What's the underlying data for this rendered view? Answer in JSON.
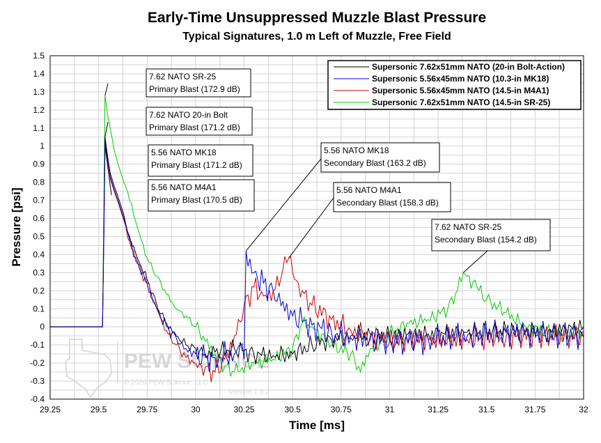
{
  "chart_data": {
    "type": "line",
    "title": "Early-Time Unsuppressed Muzzle Blast Pressure",
    "subtitle": "Typical Signatures, 1.0 m Left of Muzzle, Free Field",
    "xlabel": "Time [ms]",
    "ylabel": "Pressure [psi]",
    "xlim": [
      29.25,
      32
    ],
    "ylim": [
      -0.4,
      1.5
    ],
    "x_ticks": [
      "29.25",
      "29.5",
      "29.75",
      "30",
      "30.25",
      "30.5",
      "30.75",
      "31",
      "31.25",
      "31.5",
      "31.75",
      "32"
    ],
    "y_ticks": [
      "1.5",
      "1.4",
      "1.3",
      "1.2",
      "1.1",
      "1",
      "0.9",
      "0.8",
      "0.7",
      "0.6",
      "0.5",
      "0.4",
      "0.3",
      "0.2",
      "0.1",
      "0",
      "-0.1",
      "-0.2",
      "-0.3",
      "-0.4"
    ],
    "grid": true,
    "legend_position": "top-right",
    "series": [
      {
        "name": "Supersonic 7.62x51mm NATO (20-in Bolt-Action)",
        "color": "#000000",
        "x": [
          29.25,
          29.52,
          29.527,
          29.533,
          29.545,
          29.56,
          29.58,
          29.6,
          29.63,
          29.66,
          29.7,
          29.75,
          29.8,
          29.85,
          29.9,
          29.95,
          30.0,
          30.05,
          30.1,
          30.2,
          30.3,
          30.4,
          30.5,
          30.6,
          30.7,
          30.8,
          30.9,
          31.0,
          31.2,
          31.4,
          31.6,
          31.8,
          32.0
        ],
        "values": [
          0,
          0,
          0.55,
          1.05,
          0.95,
          0.85,
          0.78,
          0.72,
          0.62,
          0.5,
          0.38,
          0.26,
          0.12,
          0.02,
          -0.05,
          -0.1,
          -0.12,
          -0.15,
          -0.14,
          -0.12,
          -0.15,
          -0.16,
          -0.15,
          -0.1,
          -0.07,
          -0.05,
          -0.04,
          -0.05,
          -0.04,
          -0.03,
          -0.02,
          -0.03,
          0.0
        ]
      },
      {
        "name": "Supersonic 5.56x45mm NATO (10.3-in MK18)",
        "color": "#0000cc",
        "x": [
          29.25,
          29.52,
          29.527,
          29.533,
          29.545,
          29.56,
          29.58,
          29.6,
          29.63,
          29.66,
          29.7,
          29.75,
          29.8,
          29.85,
          29.9,
          29.95,
          30.0,
          30.05,
          30.1,
          30.2,
          30.23,
          30.25,
          30.26,
          30.3,
          30.35,
          30.4,
          30.45,
          30.5,
          30.6,
          30.7,
          30.8,
          30.9,
          31.0,
          31.2,
          31.4,
          31.6,
          31.8,
          32.0
        ],
        "values": [
          0,
          0,
          0.5,
          1.03,
          0.95,
          0.83,
          0.76,
          0.7,
          0.6,
          0.48,
          0.36,
          0.24,
          0.1,
          0.0,
          -0.06,
          -0.12,
          -0.15,
          -0.17,
          -0.17,
          -0.15,
          -0.1,
          -0.18,
          0.42,
          0.3,
          0.24,
          0.2,
          0.14,
          0.06,
          0.01,
          -0.03,
          -0.06,
          -0.07,
          -0.08,
          -0.07,
          -0.05,
          -0.03,
          -0.04,
          -0.05
        ]
      },
      {
        "name": "Supersonic 5.56x45mm NATO (14.5-in M4A1)",
        "color": "#cc0000",
        "x": [
          29.25,
          29.52,
          29.527,
          29.533,
          29.545,
          29.56,
          29.58,
          29.6,
          29.63,
          29.66,
          29.7,
          29.75,
          29.8,
          29.85,
          29.9,
          29.95,
          30.0,
          30.05,
          30.1,
          30.15,
          30.2,
          30.25,
          30.3,
          30.35,
          30.4,
          30.45,
          30.48,
          30.5,
          30.55,
          30.6,
          30.7,
          30.8,
          30.9,
          31.0,
          31.2,
          31.4,
          31.6,
          31.8,
          32.0
        ],
        "values": [
          0,
          0,
          0.52,
          1.0,
          0.93,
          0.82,
          0.75,
          0.69,
          0.59,
          0.47,
          0.35,
          0.24,
          0.1,
          -0.02,
          -0.1,
          -0.17,
          -0.2,
          -0.22,
          -0.25,
          -0.18,
          -0.05,
          0.12,
          0.22,
          0.17,
          0.2,
          0.32,
          0.38,
          0.3,
          0.2,
          0.12,
          0.04,
          -0.02,
          -0.05,
          -0.08,
          -0.07,
          -0.07,
          -0.06,
          -0.05,
          -0.06
        ]
      },
      {
        "name": "Supersonic 7.62x51mm NATO (14.5-in SR-25)",
        "color": "#00cc00",
        "x": [
          29.25,
          29.52,
          29.527,
          29.533,
          29.545,
          29.56,
          29.58,
          29.6,
          29.63,
          29.66,
          29.7,
          29.75,
          29.8,
          29.85,
          29.9,
          29.95,
          30.0,
          30.05,
          30.1,
          30.15,
          30.2,
          30.3,
          30.4,
          30.5,
          30.55,
          30.6,
          30.7,
          30.8,
          30.85,
          30.9,
          30.95,
          31.0,
          31.1,
          31.2,
          31.3,
          31.35,
          31.38,
          31.45,
          31.5,
          31.6,
          31.7,
          31.8,
          31.9,
          32.0
        ],
        "values": [
          0,
          0,
          0.7,
          1.28,
          1.18,
          1.1,
          0.98,
          0.9,
          0.8,
          0.7,
          0.55,
          0.38,
          0.28,
          0.18,
          0.1,
          0.06,
          0.0,
          -0.08,
          -0.15,
          -0.22,
          -0.25,
          -0.2,
          -0.18,
          -0.12,
          0.02,
          0.0,
          -0.1,
          -0.15,
          -0.25,
          -0.12,
          -0.08,
          -0.04,
          0.02,
          0.04,
          0.1,
          0.2,
          0.3,
          0.22,
          0.15,
          0.08,
          0.0,
          -0.02,
          -0.05,
          -0.03
        ]
      }
    ],
    "annotations": [
      {
        "line1": "7.62 NATO SR-25",
        "line2": "Primary Blast (172.9 dB)",
        "x": 29.533,
        "y": 1.28
      },
      {
        "line1": "7.62 NATO 20-in Bolt",
        "line2": "Primary Blast (171.2 dB)",
        "x": 29.533,
        "y": 1.05
      },
      {
        "line1": "5.56 NATO MK18",
        "line2": "Primary Blast (171.2 dB)",
        "x": 29.533,
        "y": 1.03
      },
      {
        "line1": "5.56 NATO M4A1",
        "line2": "Primary Blast (170.5 dB)",
        "x": 29.533,
        "y": 1.0
      },
      {
        "line1": "5.56 NATO MK18",
        "line2": "Secondary Blast (163.2 dB)",
        "x": 30.26,
        "y": 0.42
      },
      {
        "line1": "5.56 NATO M4A1",
        "line2": "Secondary Blast (158.3 dB)",
        "x": 30.48,
        "y": 0.38
      },
      {
        "line1": "7.62 NATO SR-25",
        "line2": "Secondary Blast (154.2 dB)",
        "x": 31.38,
        "y": 0.3
      }
    ],
    "watermark": {
      "brand": "PEW SCIENCE",
      "copyright": "© 2020 PEW Science, LLC",
      "version": "Version 1.0.2"
    }
  }
}
